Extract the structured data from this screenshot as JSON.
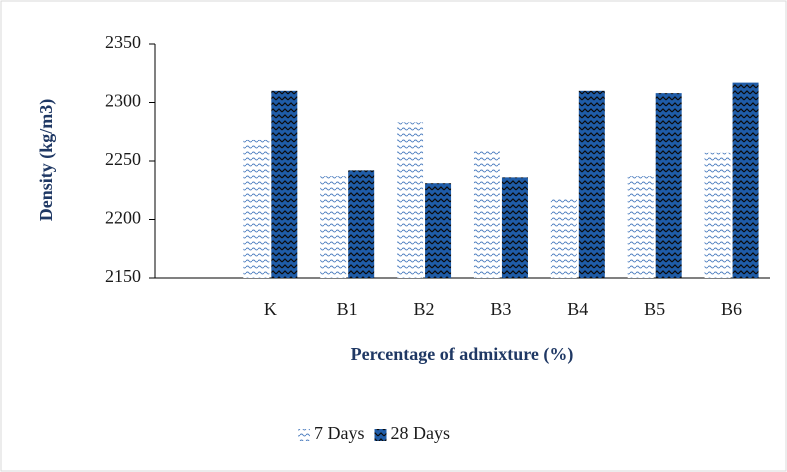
{
  "chart_data": {
    "type": "bar",
    "x_label": "Percentage of admixture (%)",
    "y_label": "Density (kg/m3)",
    "categories": [
      null,
      "K",
      "B1",
      "B2",
      "B3",
      "B4",
      "B5",
      "B6"
    ],
    "series": [
      {
        "name": "7 Days",
        "color": "#4f7fc0",
        "values": [
          null,
          2268,
          2237,
          2283,
          2259,
          2218,
          2237,
          2257
        ]
      },
      {
        "name": "28 Days",
        "color": "#1f5ca8",
        "values": [
          null,
          2310,
          2242,
          2231,
          2236,
          2310,
          2308,
          2317
        ]
      }
    ],
    "ylim": [
      2150,
      2350
    ],
    "yticks": [
      2150,
      2200,
      2250,
      2300,
      2350
    ],
    "legend": "bottom"
  }
}
